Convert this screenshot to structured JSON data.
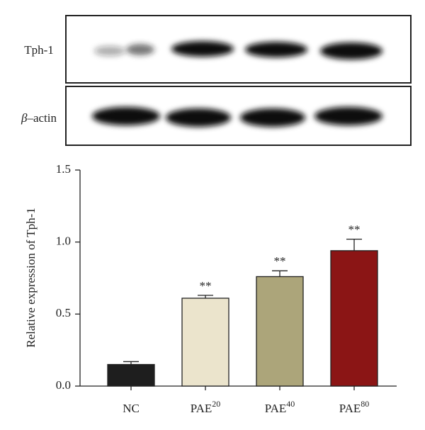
{
  "blot": {
    "rows": [
      {
        "label": "Tph-1"
      },
      {
        "symbol": "β",
        "label": "–actin"
      }
    ]
  },
  "chart_data": {
    "type": "bar",
    "ylabel": "Relative expression of Tph-1",
    "categories": [
      "NC",
      "PAE",
      "PAE",
      "PAE"
    ],
    "category_superscripts": [
      null,
      "20",
      "40",
      "80"
    ],
    "values": [
      0.15,
      0.61,
      0.76,
      0.94
    ],
    "errors": [
      0.02,
      0.02,
      0.04,
      0.08
    ],
    "annotations": [
      null,
      "**",
      "**",
      "**"
    ],
    "colors": [
      "#1e1e1e",
      "#ebe4cc",
      "#aca57a",
      "#8b1515"
    ],
    "ylim": [
      0,
      1.5
    ],
    "yticks": [
      {
        "value": 0,
        "label": "0.0"
      },
      0.5,
      {
        "value": 1,
        "label": "1.0"
      },
      1.5
    ],
    "grid": false
  }
}
